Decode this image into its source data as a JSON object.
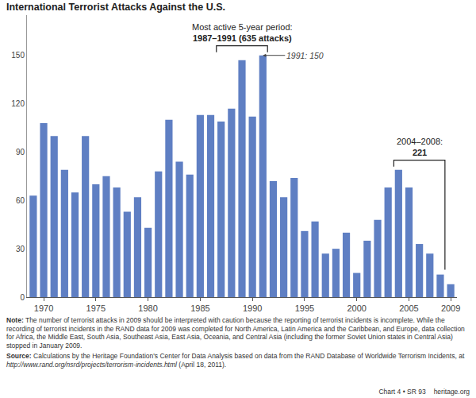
{
  "chart_data": {
    "type": "bar",
    "title": "International Terrorist Attacks Against the U.S.",
    "x": [
      1969,
      1970,
      1971,
      1972,
      1973,
      1974,
      1975,
      1976,
      1977,
      1978,
      1979,
      1980,
      1981,
      1982,
      1983,
      1984,
      1985,
      1986,
      1987,
      1988,
      1989,
      1990,
      1991,
      1992,
      1993,
      1994,
      1995,
      1996,
      1997,
      1998,
      1999,
      2000,
      2001,
      2002,
      2003,
      2004,
      2005,
      2006,
      2007,
      2008,
      2009
    ],
    "values": [
      63,
      108,
      100,
      79,
      65,
      100,
      70,
      75,
      68,
      53,
      62,
      43,
      78,
      110,
      84,
      76,
      113,
      113,
      109,
      117,
      147,
      112,
      150,
      72,
      62,
      74,
      41,
      47,
      27,
      30,
      40,
      15,
      35,
      48,
      68,
      79,
      68,
      33,
      27,
      14,
      8
    ],
    "color": "#5f7fc3",
    "xlim": [
      1968.4,
      2009.6
    ],
    "xticks": [
      1970,
      1975,
      1980,
      1985,
      1990,
      1995,
      2000,
      2005,
      2009
    ],
    "ylim": [
      0,
      175
    ],
    "yticks": [
      0,
      30,
      60,
      90,
      120,
      150
    ],
    "grid": false,
    "annotations": [
      {
        "text": [
          "Most active 5-year period:",
          "1987–1991 (635 attacks)"
        ],
        "range": [
          1987,
          1991
        ]
      },
      {
        "text": "1991: 150",
        "x": 1991,
        "y": 150
      },
      {
        "text": [
          "2004–2008:",
          "221"
        ],
        "range": [
          2004,
          2008
        ]
      }
    ]
  },
  "note": {
    "label": "Note:",
    "text": "The number of terrorist attacks in 2009 should be interpreted with caution because the reporting of terrorist incidents is incomplete. While the recording of terrorist incidents in the RAND data for 2009 was completed for North America, Latin America and the Caribbean, and Europe, data collection for Africa, the Middle East, South Asia,  Southeast Asia, East Asia, Oceania, and Central Asia (including the former Soviet Union states in Central Asia) stopped in January 2009."
  },
  "source": {
    "label": "Source:",
    "text": "Calculations by the Heritage Foundation's Center for Data Analysis based on data from the RAND Database of Worldwide Terrorism Incidents, at",
    "url": "http://www.rand.org/nsrd/projects/terrorism-incidents.html",
    "after": "(April 18, 2011)."
  },
  "footer": {
    "chart": "Chart 4 • SR 93",
    "site": "heritage.org"
  }
}
